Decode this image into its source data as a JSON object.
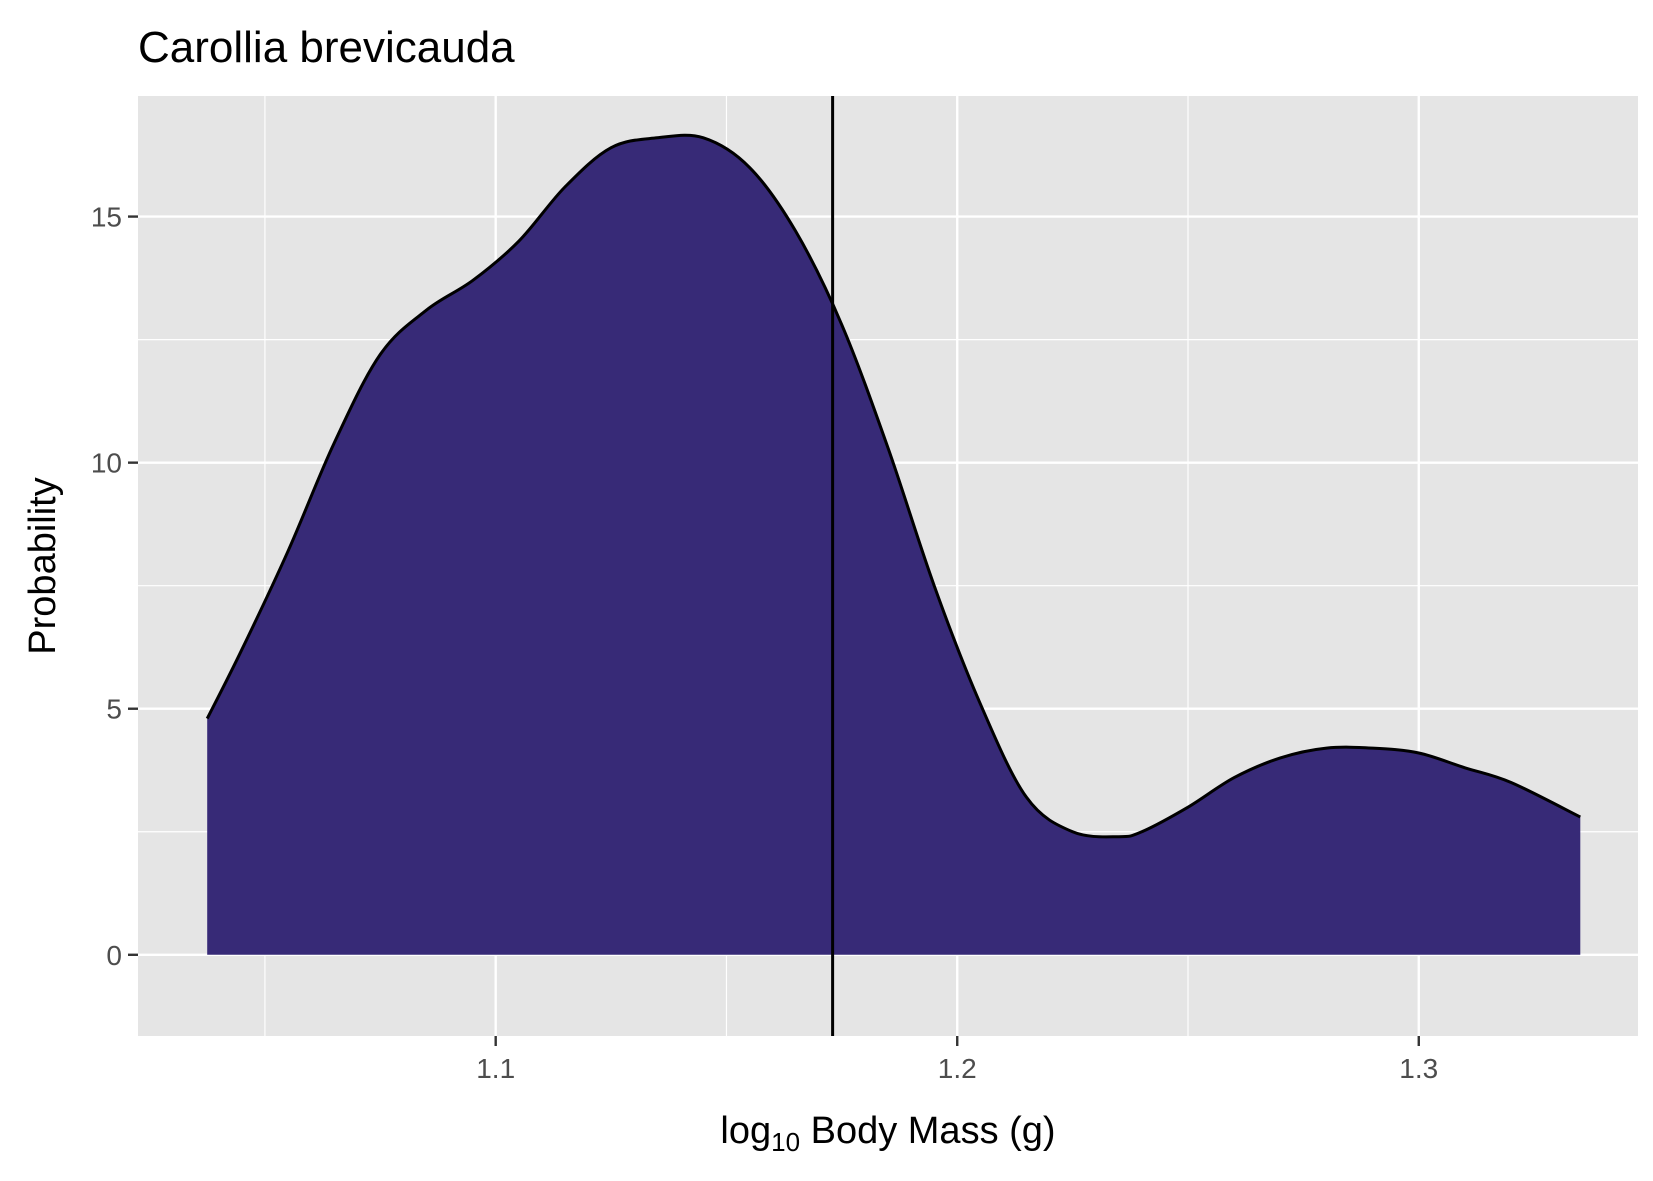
{
  "chart_data": {
    "type": "area",
    "title": "Carollia brevicauda",
    "xlabel": {
      "base": "log",
      "subscript": "10",
      "rest": " Body Mass (g)"
    },
    "ylabel": "Probability",
    "xlim": [
      1.0225,
      1.3475
    ],
    "ylim": [
      -1.65,
      17.45
    ],
    "x_ticks": [
      1.1,
      1.2,
      1.3
    ],
    "y_ticks": [
      0,
      5,
      10,
      15
    ],
    "x_minor_ticks": [
      1.05,
      1.15,
      1.25
    ],
    "y_minor_ticks": [
      2.5,
      7.5,
      12.5
    ],
    "grid": true,
    "legend": "none",
    "series": [
      {
        "x": [
          1.0375,
          1.045,
          1.055,
          1.065,
          1.075,
          1.085,
          1.095,
          1.105,
          1.115,
          1.125,
          1.135,
          1.145,
          1.155,
          1.165,
          1.175,
          1.185,
          1.195,
          1.205,
          1.215,
          1.225,
          1.235,
          1.24,
          1.25,
          1.26,
          1.27,
          1.28,
          1.29,
          1.3,
          1.31,
          1.32,
          1.335
        ],
        "values": [
          4.8,
          6.2,
          8.2,
          10.4,
          12.2,
          13.1,
          13.7,
          14.5,
          15.6,
          16.4,
          16.6,
          16.6,
          16.0,
          14.7,
          12.8,
          10.3,
          7.5,
          5.1,
          3.2,
          2.5,
          2.4,
          2.5,
          3.0,
          3.6,
          4.0,
          4.2,
          4.2,
          4.1,
          3.8,
          3.5,
          2.8
        ]
      }
    ],
    "mean_line_x": 1.173,
    "colors": {
      "fill": "#372A77",
      "line": "#000000",
      "panel": "#E5E5E5",
      "grid": "#FFFFFF",
      "tick_label": "#4D4D4D"
    }
  }
}
